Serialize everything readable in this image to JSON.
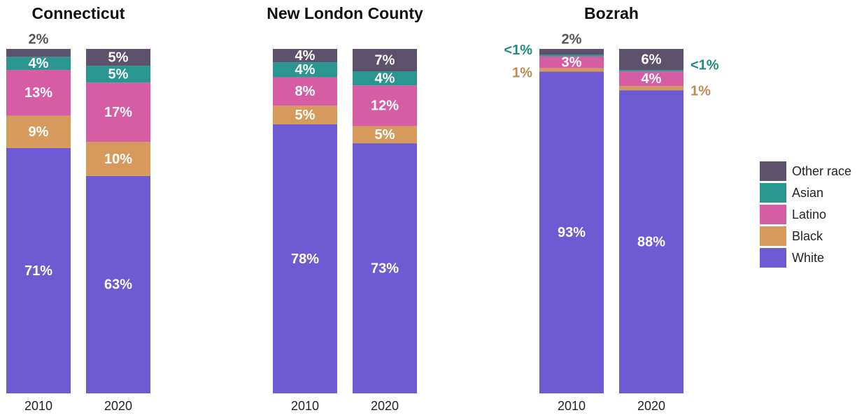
{
  "chart_data": [
    {
      "type": "bar",
      "stacked": true,
      "title": "Connecticut",
      "categories": [
        "2010",
        "2020"
      ],
      "ylim": [
        0,
        100
      ],
      "legend": "right",
      "series": [
        {
          "name": "White",
          "color": "#6e5ad2",
          "values": [
            71.2,
            63.1
          ],
          "value_labels": [
            "71%",
            "63%"
          ]
        },
        {
          "name": "Black",
          "color": "#d59a5c",
          "values": [
            9.4,
            9.9
          ],
          "value_labels": [
            "9%",
            "10%"
          ]
        },
        {
          "name": "Latino",
          "color": "#d65ca3",
          "values": [
            13.3,
            17.2
          ],
          "value_labels": [
            "13%",
            "17%"
          ]
        },
        {
          "name": "Asian",
          "color": "#2a9690",
          "values": [
            3.8,
            4.9
          ],
          "value_labels": [
            "4%",
            "5%"
          ]
        },
        {
          "name": "Other race",
          "color": "#5d516b",
          "values": [
            2.3,
            4.9
          ],
          "value_labels": [
            "2%",
            "5%"
          ]
        }
      ]
    },
    {
      "type": "bar",
      "stacked": true,
      "title": "New London County",
      "categories": [
        "2010",
        "2020"
      ],
      "ylim": [
        0,
        100
      ],
      "series": [
        {
          "name": "White",
          "color": "#6e5ad2",
          "values": [
            78.1,
            72.6
          ],
          "value_labels": [
            "78%",
            "73%"
          ]
        },
        {
          "name": "Black",
          "color": "#d59a5c",
          "values": [
            5.4,
            5.0
          ],
          "value_labels": [
            "5%",
            "5%"
          ]
        },
        {
          "name": "Latino",
          "color": "#d65ca3",
          "values": [
            8.3,
            11.8
          ],
          "value_labels": [
            "8%",
            "12%"
          ]
        },
        {
          "name": "Asian",
          "color": "#2a9690",
          "values": [
            4.3,
            4.1
          ],
          "value_labels": [
            "4%",
            "4%"
          ]
        },
        {
          "name": "Other race",
          "color": "#5d516b",
          "values": [
            3.9,
            6.5
          ],
          "value_labels": [
            "4%",
            "7%"
          ]
        }
      ]
    },
    {
      "type": "bar",
      "stacked": true,
      "title": "Bozrah",
      "categories": [
        "2010",
        "2020"
      ],
      "ylim": [
        0,
        100
      ],
      "series": [
        {
          "name": "White",
          "color": "#6e5ad2",
          "values": [
            93.4,
            88.0
          ],
          "value_labels": [
            "93%",
            "88%"
          ]
        },
        {
          "name": "Black",
          "color": "#d59a5c",
          "values": [
            1.0,
            1.2
          ],
          "value_labels": [
            "1%",
            "1%"
          ]
        },
        {
          "name": "Latino",
          "color": "#d65ca3",
          "values": [
            3.4,
            4.3
          ],
          "value_labels": [
            "3%",
            "4%"
          ]
        },
        {
          "name": "Asian",
          "color": "#2a9690",
          "values": [
            0.5,
            0.4
          ],
          "value_labels": [
            "<1%",
            "<1%"
          ]
        },
        {
          "name": "Other race",
          "color": "#5d516b",
          "values": [
            1.7,
            6.1
          ],
          "value_labels": [
            "2%",
            "6%"
          ]
        }
      ]
    }
  ]
}
